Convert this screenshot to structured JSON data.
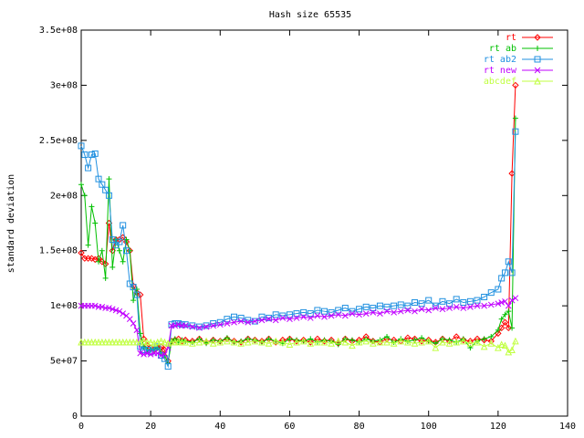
{
  "chart_data": {
    "type": "line",
    "title": "Hash size 65535",
    "y_label": "standard deviation",
    "x": [
      0,
      1,
      2,
      3,
      4,
      5,
      6,
      7,
      8,
      9,
      10,
      11,
      12,
      13,
      14,
      15,
      16,
      17,
      18,
      19,
      20,
      21,
      22,
      23,
      24,
      25,
      26,
      27,
      28,
      29,
      30,
      32,
      34,
      36,
      38,
      40,
      42,
      44,
      46,
      48,
      50,
      52,
      54,
      56,
      58,
      60,
      62,
      64,
      66,
      68,
      70,
      72,
      74,
      76,
      78,
      80,
      82,
      84,
      86,
      88,
      90,
      92,
      94,
      96,
      98,
      100,
      102,
      104,
      106,
      108,
      110,
      112,
      114,
      116,
      118,
      120,
      121,
      122,
      123,
      124,
      125
    ],
    "xlim": [
      0,
      140
    ],
    "xticks": [
      0,
      20,
      40,
      60,
      80,
      100,
      120,
      140
    ],
    "ylim": [
      0,
      350000000
    ],
    "yticks": [
      0,
      {
        "value": 50000000,
        "label": "5e+07"
      },
      {
        "value": 100000000,
        "label": "1e+08"
      },
      {
        "value": 150000000,
        "label": "1.5e+08"
      },
      {
        "value": 200000000,
        "label": "2e+08"
      },
      {
        "value": 250000000,
        "label": "2.5e+08"
      },
      {
        "value": 300000000,
        "label": "3e+08"
      },
      {
        "value": 350000000,
        "label": "3.5e+08"
      }
    ],
    "grid": false,
    "legend": "top-right",
    "series": [
      {
        "name": "rt",
        "color": "#ff0000",
        "values": [
          148000000.0,
          143000000.0,
          143000000.0,
          143000000.0,
          142000000.0,
          143000000.0,
          140000000.0,
          138000000.0,
          175000000.0,
          150000000.0,
          160000000.0,
          160000000.0,
          162000000.0,
          158000000.0,
          150000000.0,
          118000000.0,
          112000000.0,
          110000000.0,
          70000000.0,
          64000000.0,
          62000000.0,
          60000000.0,
          62000000.0,
          63000000.0,
          60000000.0,
          50000000.0,
          68000000.0,
          69000000.0,
          70000000.0,
          68000000.0,
          69000000.0,
          68000000.0,
          70000000.0,
          67000000.0,
          69000000.0,
          68000000.0,
          70000000.0,
          68000000.0,
          67000000.0,
          70000000.0,
          69000000.0,
          68000000.0,
          70000000.0,
          67000000.0,
          69000000.0,
          70000000.0,
          68000000.0,
          69000000.0,
          67000000.0,
          70000000.0,
          68000000.0,
          69000000.0,
          66000000.0,
          70000000.0,
          68000000.0,
          69000000.0,
          72000000.0,
          68000000.0,
          67000000.0,
          70000000.0,
          69000000.0,
          68000000.0,
          71000000.0,
          70000000.0,
          68000000.0,
          69000000.0,
          67000000.0,
          70000000.0,
          68000000.0,
          72000000.0,
          69000000.0,
          68000000.0,
          70000000.0,
          69000000.0,
          68000000.0,
          75000000.0,
          80000000.0,
          85000000.0,
          80000000.0,
          220000000.0,
          300000000.0
        ]
      },
      {
        "name": "rt ab",
        "color": "#00c000",
        "values": [
          210000000.0,
          200000000.0,
          155000000.0,
          190000000.0,
          175000000.0,
          140000000.0,
          150000000.0,
          125000000.0,
          215000000.0,
          135000000.0,
          160000000.0,
          150000000.0,
          140000000.0,
          160000000.0,
          150000000.0,
          105000000.0,
          115000000.0,
          75000000.0,
          63000000.0,
          60000000.0,
          60000000.0,
          61000000.0,
          62000000.0,
          58000000.0,
          55000000.0,
          48000000.0,
          68000000.0,
          70000000.0,
          67000000.0,
          69000000.0,
          68000000.0,
          67000000.0,
          70000000.0,
          66000000.0,
          69000000.0,
          68000000.0,
          71000000.0,
          67000000.0,
          68000000.0,
          70000000.0,
          69000000.0,
          67000000.0,
          70000000.0,
          68000000.0,
          66000000.0,
          70000000.0,
          69000000.0,
          68000000.0,
          70000000.0,
          67000000.0,
          69000000.0,
          68000000.0,
          65000000.0,
          70000000.0,
          69000000.0,
          67000000.0,
          70000000.0,
          68000000.0,
          69000000.0,
          72000000.0,
          67000000.0,
          70000000.0,
          68000000.0,
          69000000.0,
          71000000.0,
          68000000.0,
          66000000.0,
          70000000.0,
          69000000.0,
          67000000.0,
          70000000.0,
          62000000.0,
          68000000.0,
          70000000.0,
          72000000.0,
          78000000.0,
          88000000.0,
          92000000.0,
          95000000.0,
          80000000.0,
          270000000.0
        ]
      },
      {
        "name": "rt ab2",
        "color": "#2090e0",
        "values": [
          245000000.0,
          237000000.0,
          225000000.0,
          237000000.0,
          238000000.0,
          215000000.0,
          210000000.0,
          205000000.0,
          200000000.0,
          160000000.0,
          155000000.0,
          158000000.0,
          173000000.0,
          150000000.0,
          120000000.0,
          117000000.0,
          110000000.0,
          63000000.0,
          60000000.0,
          60000000.0,
          58000000.0,
          62000000.0,
          63000000.0,
          55000000.0,
          52000000.0,
          45000000.0,
          83000000.0,
          84000000.0,
          84000000.0,
          83000000.0,
          83000000.0,
          82000000.0,
          81000000.0,
          82000000.0,
          84000000.0,
          85000000.0,
          88000000.0,
          90000000.0,
          89000000.0,
          87000000.0,
          86000000.0,
          90000000.0,
          89000000.0,
          92000000.0,
          91000000.0,
          92000000.0,
          93000000.0,
          94000000.0,
          93000000.0,
          96000000.0,
          95000000.0,
          94000000.0,
          96000000.0,
          98000000.0,
          95000000.0,
          97000000.0,
          99000000.0,
          98000000.0,
          100000000.0,
          99000000.0,
          100000000.0,
          101000000.0,
          100000000.0,
          103000000.0,
          102000000.0,
          105000000.0,
          100000000.0,
          104000000.0,
          102000000.0,
          106000000.0,
          103000000.0,
          104000000.0,
          105000000.0,
          108000000.0,
          112000000.0,
          115000000.0,
          125000000.0,
          130000000.0,
          140000000.0,
          130000000.0,
          258000000.0
        ]
      },
      {
        "name": "rt new",
        "color": "#c000ff",
        "values": [
          100000000.0,
          100000000.0,
          100000000.0,
          100000000.0,
          100000000.0,
          99000000.0,
          99000000.0,
          98000000.0,
          98000000.0,
          97000000.0,
          96000000.0,
          95000000.0,
          93000000.0,
          91000000.0,
          88000000.0,
          84000000.0,
          78000000.0,
          57000000.0,
          56000000.0,
          57000000.0,
          56000000.0,
          57000000.0,
          57000000.0,
          55000000.0,
          56000000.0,
          62000000.0,
          82000000.0,
          82000000.0,
          83000000.0,
          82000000.0,
          82000000.0,
          81000000.0,
          80000000.0,
          81000000.0,
          82000000.0,
          83000000.0,
          84000000.0,
          85000000.0,
          86000000.0,
          85000000.0,
          86000000.0,
          87000000.0,
          88000000.0,
          87000000.0,
          89000000.0,
          88000000.0,
          89000000.0,
          90000000.0,
          89000000.0,
          91000000.0,
          90000000.0,
          91000000.0,
          92000000.0,
          91000000.0,
          93000000.0,
          92000000.0,
          93000000.0,
          94000000.0,
          93000000.0,
          95000000.0,
          94000000.0,
          95000000.0,
          96000000.0,
          95000000.0,
          97000000.0,
          96000000.0,
          98000000.0,
          97000000.0,
          98000000.0,
          99000000.0,
          98000000.0,
          99000000.0,
          100000000.0,
          100000000.0,
          101000000.0,
          102000000.0,
          103000000.0,
          104000000.0,
          100000000.0,
          105000000.0,
          107000000.0
        ]
      },
      {
        "name": "abcdef",
        "color": "#c0ff40",
        "values": [
          67000000.0,
          67000000.0,
          67000000.0,
          67000000.0,
          67000000.0,
          67000000.0,
          67000000.0,
          67000000.0,
          67000000.0,
          67000000.0,
          67000000.0,
          67000000.0,
          67000000.0,
          67000000.0,
          67000000.0,
          67000000.0,
          67000000.0,
          67000000.0,
          68000000.0,
          67000000.0,
          67000000.0,
          66000000.0,
          67000000.0,
          68000000.0,
          67000000.0,
          66000000.0,
          67000000.0,
          67000000.0,
          68000000.0,
          67000000.0,
          67000000.0,
          66000000.0,
          67000000.0,
          68000000.0,
          66000000.0,
          67000000.0,
          68000000.0,
          67000000.0,
          66000000.0,
          67000000.0,
          68000000.0,
          67000000.0,
          66000000.0,
          68000000.0,
          67000000.0,
          65000000.0,
          67000000.0,
          68000000.0,
          66000000.0,
          67000000.0,
          67000000.0,
          66000000.0,
          68000000.0,
          67000000.0,
          64000000.0,
          67000000.0,
          68000000.0,
          66000000.0,
          67000000.0,
          67000000.0,
          66000000.0,
          68000000.0,
          67000000.0,
          66000000.0,
          67000000.0,
          68000000.0,
          62000000.0,
          67000000.0,
          66000000.0,
          67000000.0,
          68000000.0,
          66000000.0,
          67000000.0,
          63000000.0,
          66000000.0,
          62000000.0,
          65000000.0,
          64000000.0,
          58000000.0,
          60000000.0,
          68000000.0
        ]
      }
    ]
  }
}
